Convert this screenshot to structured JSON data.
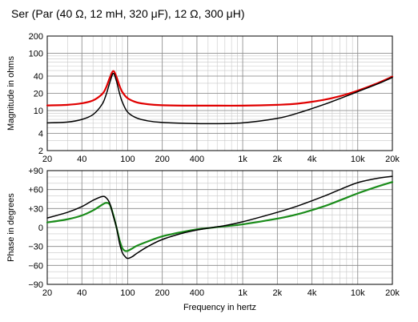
{
  "title": "Ser (Par (40 Ω, 12 mH, 320 μF), 12 Ω, 300 μH)",
  "chart_data": [
    {
      "type": "line",
      "name": "magnitude",
      "xlabel": "",
      "ylabel": "Magnitude in ohms",
      "x_scale": "log",
      "y_scale": "log",
      "xlim": [
        20,
        20000
      ],
      "ylim": [
        2,
        200
      ],
      "x_ticks": [
        20,
        40,
        100,
        200,
        400,
        1000,
        2000,
        4000,
        10000,
        20000
      ],
      "x_tick_labels": [
        "20",
        "40",
        "100",
        "200",
        "400",
        "1k",
        "2k",
        "4k",
        "10k",
        "20k"
      ],
      "y_ticks": [
        2,
        4,
        10,
        20,
        40,
        100,
        200
      ],
      "y_tick_labels": [
        "2",
        "4",
        "10",
        "20",
        "40",
        "100",
        "200"
      ],
      "grid": true,
      "series": [
        {
          "color": "#e00000",
          "x": [
            20,
            30,
            40,
            50,
            60,
            65,
            70,
            75,
            80,
            85,
            90,
            100,
            120,
            150,
            200,
            300,
            500,
            1000,
            2000,
            3000,
            5000,
            7000,
            10000,
            15000,
            20000
          ],
          "y": [
            12.3,
            12.6,
            13.4,
            15.0,
            19.4,
            25.3,
            37.5,
            49.0,
            38.5,
            27.0,
            21.0,
            16.4,
            13.9,
            12.9,
            12.4,
            12.2,
            12.2,
            12.2,
            12.6,
            13.2,
            15.3,
            17.8,
            22.3,
            30.3,
            39.1
          ]
        },
        {
          "color": "#000000",
          "x": [
            20,
            30,
            40,
            50,
            60,
            65,
            70,
            75,
            80,
            85,
            90,
            100,
            120,
            150,
            200,
            300,
            500,
            1000,
            2000,
            3000,
            5000,
            7000,
            10000,
            15000,
            20000
          ],
          "y": [
            6.1,
            6.3,
            7.0,
            8.5,
            12.9,
            19.0,
            31.0,
            44.5,
            32.5,
            20.0,
            14.0,
            9.4,
            7.4,
            6.6,
            6.2,
            6.0,
            5.9,
            6.1,
            7.3,
            9.0,
            12.6,
            16.2,
            21.4,
            29.4,
            37.9
          ]
        }
      ]
    },
    {
      "type": "line",
      "name": "phase",
      "xlabel": "Frequency in hertz",
      "ylabel": "Phase in degrees",
      "x_scale": "log",
      "xlim": [
        20,
        20000
      ],
      "ylim": [
        -90,
        90
      ],
      "x_ticks": [
        20,
        40,
        100,
        200,
        400,
        1000,
        2000,
        4000,
        10000,
        20000
      ],
      "x_tick_labels": [
        "20",
        "40",
        "100",
        "200",
        "400",
        "1k",
        "2k",
        "4k",
        "10k",
        "20k"
      ],
      "y_ticks": [
        90,
        60,
        30,
        0,
        -30,
        -60,
        -90
      ],
      "y_tick_labels": [
        "+90",
        "+60",
        "+30",
        "0",
        "−30",
        "−60",
        "−90"
      ],
      "grid": true,
      "series": [
        {
          "color": "#1a8c1a",
          "x": [
            20,
            30,
            40,
            50,
            60,
            65,
            70,
            75,
            80,
            85,
            90,
            95,
            100,
            110,
            120,
            150,
            200,
            300,
            400,
            500,
            700,
            1000,
            2000,
            3000,
            5000,
            7000,
            10000,
            15000,
            20000
          ],
          "y": [
            8,
            13,
            19,
            27,
            36,
            39,
            36,
            20,
            0,
            -20,
            -33,
            -37,
            -37,
            -33,
            -29,
            -22,
            -14,
            -7,
            -3,
            -1,
            2,
            5,
            14,
            21,
            33,
            43,
            54,
            65,
            72
          ]
        },
        {
          "color": "#000000",
          "x": [
            20,
            30,
            40,
            50,
            60,
            65,
            70,
            75,
            80,
            85,
            90,
            95,
            100,
            110,
            120,
            150,
            200,
            300,
            400,
            500,
            700,
            1000,
            2000,
            3000,
            5000,
            7000,
            10000,
            15000,
            20000
          ],
          "y": [
            15,
            24,
            33,
            43,
            49,
            47,
            38,
            18,
            0,
            -25,
            -40,
            -46,
            -49,
            -46,
            -41,
            -30,
            -19,
            -9,
            -4,
            -1,
            3,
            9,
            24,
            34,
            49,
            60,
            71,
            78,
            81
          ]
        }
      ]
    }
  ]
}
